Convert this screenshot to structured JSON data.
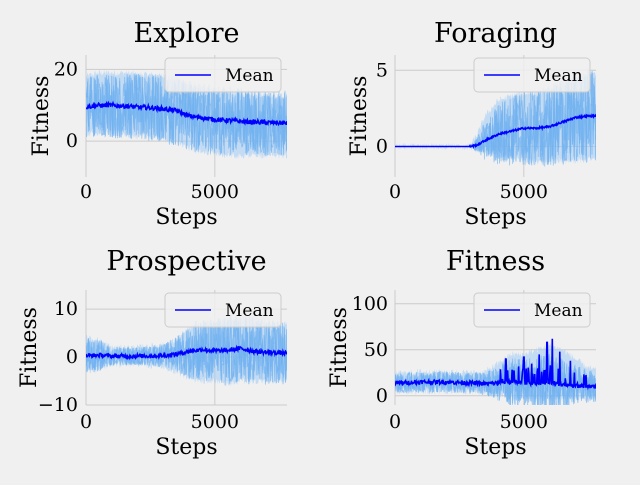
{
  "figure": {
    "background": "#f0f0f0",
    "mean_color": "#0000ff",
    "band_color": "#9ecbf5",
    "grid_color": "#cbcbcb"
  },
  "chart_data": [
    {
      "id": "explore",
      "type": "line",
      "title": "Explore",
      "xlabel": "Steps",
      "ylabel": "Fitness",
      "xlim": [
        0,
        7800
      ],
      "ylim": [
        -10,
        24
      ],
      "xticks": [
        0,
        5000
      ],
      "yticks": [
        0,
        20
      ],
      "ytick_labels": [
        "0",
        "20"
      ],
      "grid": true,
      "legend": {
        "label": "Mean",
        "position": "top-right"
      },
      "series": [
        {
          "name": "Mean",
          "x": [
            0,
            500,
            1000,
            1500,
            2000,
            2500,
            3000,
            3500,
            4000,
            4500,
            5000,
            5500,
            6000,
            6500,
            7000,
            7500,
            7800
          ],
          "values": [
            9.5,
            10,
            10,
            9.8,
            9.5,
            9.3,
            9,
            8.5,
            7,
            6.5,
            6,
            5.8,
            5.5,
            5.3,
            5.2,
            5.1,
            5
          ]
        },
        {
          "name": "Upper band",
          "x": [
            0,
            500,
            1000,
            1500,
            2000,
            2500,
            3000,
            3500,
            4000,
            4500,
            5000,
            5500,
            6000,
            6500,
            7000,
            7500,
            7800
          ],
          "values": [
            18,
            19,
            19,
            19,
            18.5,
            18.5,
            18,
            17.5,
            16,
            15,
            14,
            14,
            13,
            13,
            13,
            12.5,
            12.5
          ]
        },
        {
          "name": "Lower band",
          "x": [
            0,
            500,
            1000,
            1500,
            2000,
            2500,
            3000,
            3500,
            4000,
            4500,
            5000,
            5500,
            6000,
            6500,
            7000,
            7500,
            7800
          ],
          "values": [
            2,
            2.5,
            2.5,
            2,
            1.5,
            1,
            0.5,
            -0.5,
            -2,
            -3,
            -3.5,
            -4,
            -4,
            -4,
            -4,
            -4,
            -4
          ]
        }
      ]
    },
    {
      "id": "foraging",
      "type": "line",
      "title": "Foraging",
      "xlabel": "Steps",
      "ylabel": "Fitness",
      "xlim": [
        0,
        7800
      ],
      "ylim": [
        -2,
        6
      ],
      "xticks": [
        0,
        5000
      ],
      "yticks": [
        0,
        5
      ],
      "ytick_labels": [
        "0",
        "5"
      ],
      "grid": true,
      "legend": {
        "label": "Mean",
        "position": "top-right"
      },
      "series": [
        {
          "name": "Mean",
          "x": [
            0,
            1000,
            2000,
            2900,
            3200,
            3500,
            4000,
            4500,
            5000,
            5500,
            6000,
            6500,
            7000,
            7500,
            7800
          ],
          "values": [
            0,
            0,
            0,
            0,
            0.1,
            0.4,
            0.8,
            1.0,
            1.2,
            1.2,
            1.3,
            1.6,
            1.9,
            2.0,
            2.0
          ]
        },
        {
          "name": "Upper band",
          "x": [
            0,
            1000,
            2000,
            2900,
            3200,
            3500,
            4000,
            4500,
            5000,
            5500,
            6000,
            6500,
            7000,
            7500,
            7800
          ],
          "values": [
            0,
            0,
            0,
            0,
            0.8,
            2.0,
            3.0,
            3.3,
            3.5,
            3.5,
            3.8,
            4.2,
            4.5,
            4.8,
            4.8
          ]
        },
        {
          "name": "Lower band",
          "x": [
            0,
            1000,
            2000,
            2900,
            3200,
            3500,
            4000,
            4500,
            5000,
            5500,
            6000,
            6500,
            7000,
            7500,
            7800
          ],
          "values": [
            0,
            0,
            0,
            0,
            -0.2,
            -0.4,
            -0.6,
            -0.8,
            -0.9,
            -1.0,
            -1.0,
            -0.9,
            -0.9,
            -0.8,
            -0.8
          ]
        }
      ]
    },
    {
      "id": "prospective",
      "type": "line",
      "title": "Prospective",
      "xlabel": "Steps",
      "ylabel": "Fitness",
      "xlim": [
        0,
        7800
      ],
      "ylim": [
        -10,
        14
      ],
      "xticks": [
        0,
        5000
      ],
      "yticks": [
        -10,
        0,
        10
      ],
      "ytick_labels": [
        "−10",
        "0",
        "10"
      ],
      "grid": true,
      "legend": {
        "label": "Mean",
        "position": "top-right"
      },
      "series": [
        {
          "name": "Mean",
          "x": [
            0,
            500,
            1000,
            2000,
            3000,
            3500,
            4000,
            4500,
            5000,
            5500,
            6000,
            6500,
            7000,
            7500,
            7800
          ],
          "values": [
            0.3,
            0.4,
            0.2,
            0.2,
            0.3,
            0.6,
            1.2,
            1.6,
            1.3,
            1.4,
            1.8,
            1.2,
            1.0,
            0.9,
            0.8
          ]
        },
        {
          "name": "Upper band",
          "x": [
            0,
            500,
            1000,
            2000,
            3000,
            3500,
            4000,
            4500,
            5000,
            5500,
            6000,
            6500,
            7000,
            7500,
            7800
          ],
          "values": [
            4,
            3.5,
            2,
            2,
            2.5,
            3.5,
            6,
            7,
            7.5,
            8,
            8,
            8,
            7.5,
            7,
            7
          ]
        },
        {
          "name": "Lower band",
          "x": [
            0,
            500,
            1000,
            2000,
            3000,
            3500,
            4000,
            4500,
            5000,
            5500,
            6000,
            6500,
            7000,
            7500,
            7800
          ],
          "values": [
            -3,
            -2.5,
            -1.5,
            -1.5,
            -2,
            -3,
            -4.5,
            -5,
            -5,
            -5.5,
            -5,
            -5,
            -5,
            -5,
            -5
          ]
        }
      ]
    },
    {
      "id": "fitness",
      "type": "line",
      "title": "Fitness",
      "xlabel": "Steps",
      "ylabel": "Fitness",
      "xlim": [
        0,
        7800
      ],
      "ylim": [
        -10,
        115
      ],
      "xticks": [
        0,
        5000
      ],
      "yticks": [
        0,
        50,
        100
      ],
      "ytick_labels": [
        "0",
        "50",
        "100"
      ],
      "grid": true,
      "legend": {
        "label": "Mean",
        "position": "top-right"
      },
      "series": [
        {
          "name": "Mean",
          "x": [
            0,
            1000,
            2000,
            3000,
            3500,
            4000,
            4500,
            5000,
            5500,
            6000,
            6500,
            7000,
            7500,
            7800
          ],
          "values": [
            14,
            15,
            15,
            14,
            13,
            14,
            15,
            14,
            14,
            14,
            12,
            11,
            10,
            9
          ]
        },
        {
          "name": "Upper band",
          "x": [
            0,
            1000,
            2000,
            3000,
            3500,
            4000,
            4500,
            5000,
            5500,
            6000,
            6500,
            7000,
            7500,
            7800
          ],
          "values": [
            24,
            26,
            26,
            25,
            26,
            35,
            45,
            45,
            50,
            55,
            50,
            40,
            30,
            28
          ]
        },
        {
          "name": "Lower band",
          "x": [
            0,
            1000,
            2000,
            3000,
            3500,
            4000,
            4500,
            5000,
            5500,
            6000,
            6500,
            7000,
            7500,
            7800
          ],
          "values": [
            5,
            5,
            5,
            4,
            3,
            0,
            -2,
            -2,
            -3,
            -3,
            -2,
            -2,
            -2,
            -2
          ]
        }
      ],
      "peaks": {
        "x": [
          4300,
          4800,
          5000,
          5300,
          5600,
          5900,
          6100,
          6400,
          6800
        ],
        "values": [
          40,
          32,
          42,
          35,
          45,
          58,
          62,
          48,
          38
        ]
      }
    }
  ]
}
